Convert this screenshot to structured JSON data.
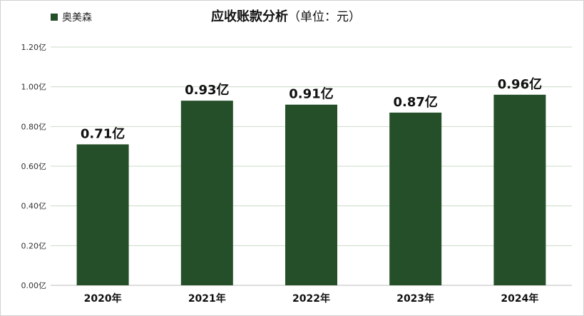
{
  "chart_data": {
    "type": "bar",
    "title": "应收账款分析",
    "subtitle": "（单位：元）",
    "categories": [
      "2020年",
      "2021年",
      "2022年",
      "2023年",
      "2024年"
    ],
    "series": [
      {
        "name": "奥美森",
        "values": [
          0.71,
          0.93,
          0.91,
          0.87,
          0.96
        ],
        "labels": [
          "0.71亿",
          "0.93亿",
          "0.91亿",
          "0.87亿",
          "0.96亿"
        ]
      }
    ],
    "ylim": [
      0,
      1.2
    ],
    "yticks": [
      0,
      0.2,
      0.4,
      0.6,
      0.8,
      1.0,
      1.2
    ],
    "ytick_labels": [
      "0.00亿",
      "0.20亿",
      "0.40亿",
      "0.60亿",
      "0.80亿",
      "1.00亿",
      "1.20亿"
    ],
    "grid": true,
    "legend_position": "top-left",
    "colors": {
      "bar": "#244f29",
      "grid": "#c9dcc5",
      "axis": "#bdbdbd"
    }
  }
}
